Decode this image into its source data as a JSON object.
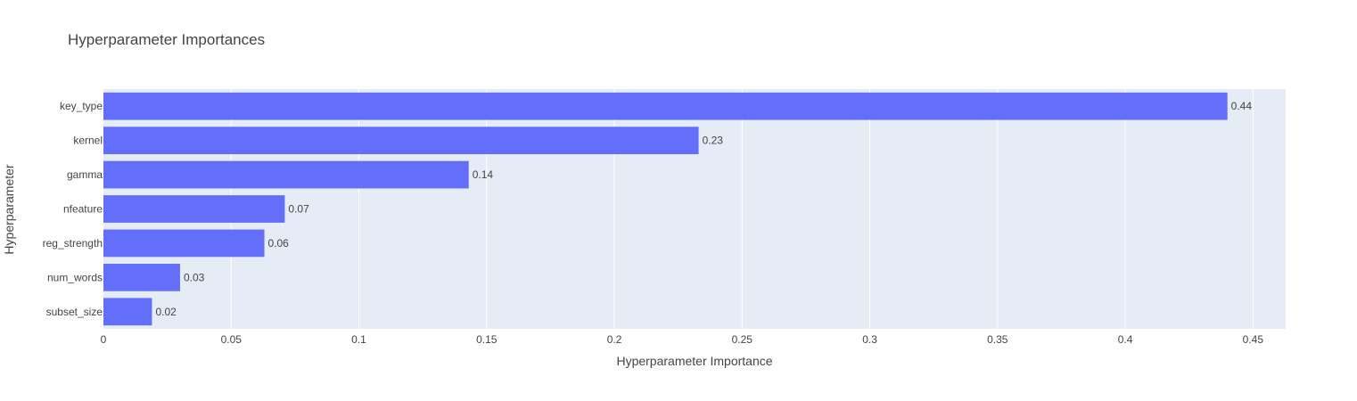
{
  "chart_data": {
    "type": "bar",
    "orientation": "horizontal",
    "title": "Hyperparameter Importances",
    "xlabel": "Hyperparameter Importance",
    "ylabel": "Hyperparameter",
    "categories": [
      "key_type",
      "kernel",
      "gamma",
      "nfeature",
      "reg_strength",
      "num_words",
      "subset_size"
    ],
    "values": [
      0.44,
      0.233,
      0.143,
      0.071,
      0.063,
      0.03,
      0.019
    ],
    "value_labels": [
      "0.44",
      "0.23",
      "0.14",
      "0.07",
      "0.06",
      "0.03",
      "0.02"
    ],
    "xlim": [
      0,
      0.4628
    ],
    "xticks": [
      0,
      0.05,
      0.1,
      0.15,
      0.2,
      0.25,
      0.3,
      0.35,
      0.4,
      0.45
    ],
    "xtick_labels": [
      "0",
      "0.05",
      "0.1",
      "0.15",
      "0.2",
      "0.25",
      "0.3",
      "0.35",
      "0.4",
      "0.45"
    ],
    "grid": true,
    "colors": {
      "bar": "#636efa",
      "plot_background": "#e5ecf6",
      "grid": "#ffffff",
      "text": "#444444"
    }
  }
}
